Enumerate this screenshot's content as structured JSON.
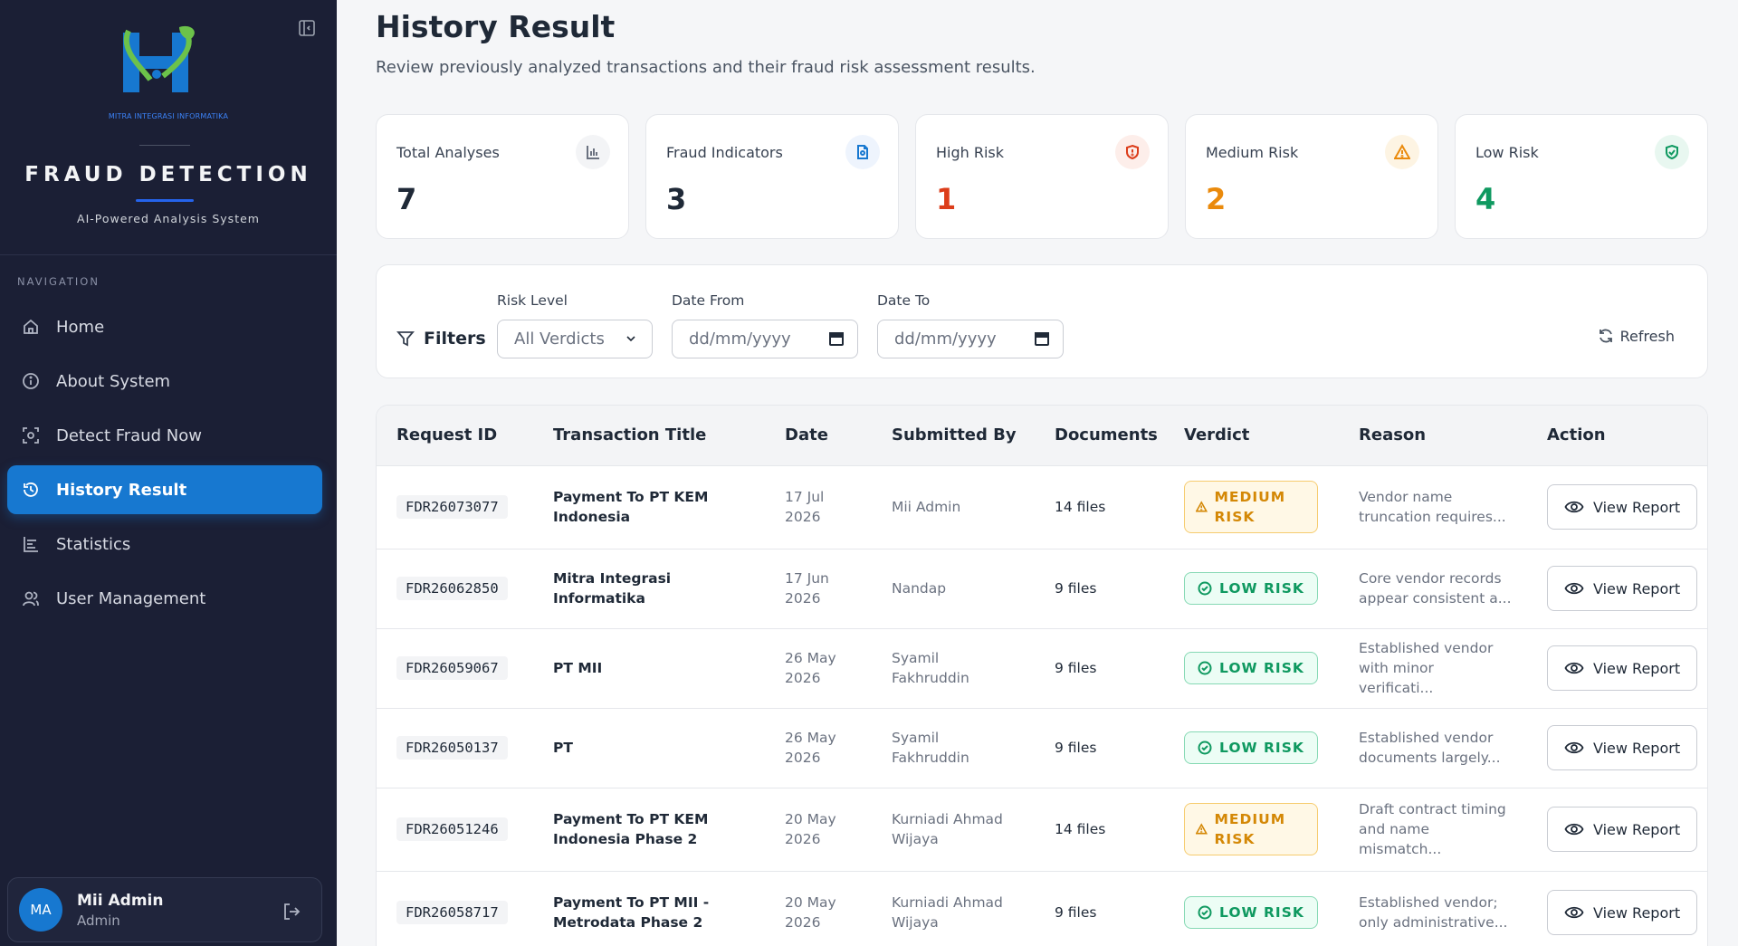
{
  "sidebar": {
    "logo_text": "MITRA INTEGRASI INFORMATIKA",
    "brand_title": "FRAUD DETECTION",
    "brand_tagline": "AI-Powered Analysis System",
    "nav_label": "NAVIGATION",
    "items": [
      {
        "label": "Home",
        "icon": "home-icon"
      },
      {
        "label": "About System",
        "icon": "info-icon"
      },
      {
        "label": "Detect Fraud Now",
        "icon": "scan-icon"
      },
      {
        "label": "History Result",
        "icon": "history-icon",
        "active": true
      },
      {
        "label": "Statistics",
        "icon": "chart-icon"
      },
      {
        "label": "User Management",
        "icon": "users-icon"
      }
    ],
    "user": {
      "initials": "MA",
      "name": "Mii Admin",
      "role": "Admin"
    }
  },
  "header": {
    "title": "History Result",
    "subtitle": "Review previously analyzed transactions and their fraud risk assessment results."
  },
  "stats": [
    {
      "label": "Total Analyses",
      "value": "7",
      "color": "#1f2937",
      "icon": "bar-chart-icon"
    },
    {
      "label": "Fraud Indicators",
      "value": "3",
      "color": "#1f2937",
      "icon": "document-icon"
    },
    {
      "label": "High Risk",
      "value": "1",
      "color": "#dc3d1a",
      "icon": "shield-alert-icon"
    },
    {
      "label": "Medium Risk",
      "value": "2",
      "color": "#ea8a0c",
      "icon": "warning-icon"
    },
    {
      "label": "Low Risk",
      "value": "4",
      "color": "#0f9960",
      "icon": "shield-check-icon"
    }
  ],
  "filters": {
    "title": "Filters",
    "risk_label": "Risk Level",
    "risk_value": "All Verdicts",
    "date_from_label": "Date From",
    "date_from_placeholder": "dd/mm/yyyy",
    "date_to_label": "Date To",
    "date_to_placeholder": "dd/mm/yyyy",
    "refresh_label": "Refresh"
  },
  "table": {
    "columns": [
      "Request ID",
      "Transaction Title",
      "Date",
      "Submitted By",
      "Documents",
      "Verdict",
      "Reason",
      "Action"
    ],
    "action_label": "View Report",
    "rows": [
      {
        "id": "FDR26073077",
        "title": "Payment To PT KEM Indonesia",
        "date": "17 Jul 2026",
        "by": "Mii Admin",
        "docs": "14 files",
        "verdict": "MEDIUM RISK",
        "level": "medium",
        "reason": "Vendor name truncation requires..."
      },
      {
        "id": "FDR26062850",
        "title": "Mitra Integrasi Informatika",
        "date": "17 Jun 2026",
        "by": "Nandap",
        "docs": "9 files",
        "verdict": "LOW RISK",
        "level": "low",
        "reason": "Core vendor records appear consistent a..."
      },
      {
        "id": "FDR26059067",
        "title": "PT MII",
        "date": "26 May 2026",
        "by": "Syamil Fakhruddin",
        "docs": "9 files",
        "verdict": "LOW RISK",
        "level": "low",
        "reason": "Established vendor with minor verificati..."
      },
      {
        "id": "FDR26050137",
        "title": "PT",
        "date": "26 May 2026",
        "by": "Syamil Fakhruddin",
        "docs": "9 files",
        "verdict": "LOW RISK",
        "level": "low",
        "reason": "Established vendor documents largely..."
      },
      {
        "id": "FDR26051246",
        "title": "Payment To PT KEM Indonesia Phase 2",
        "date": "20 May 2026",
        "by": "Kurniadi Ahmad Wijaya",
        "docs": "14 files",
        "verdict": "MEDIUM RISK",
        "level": "medium",
        "reason": "Draft contract timing and name mismatch..."
      },
      {
        "id": "FDR26058717",
        "title": "Payment To PT MII - Metrodata Phase 2",
        "date": "20 May 2026",
        "by": "Kurniadi Ahmad Wijaya",
        "docs": "9 files",
        "verdict": "LOW RISK",
        "level": "low",
        "reason": "Established vendor; only administrative..."
      }
    ]
  }
}
